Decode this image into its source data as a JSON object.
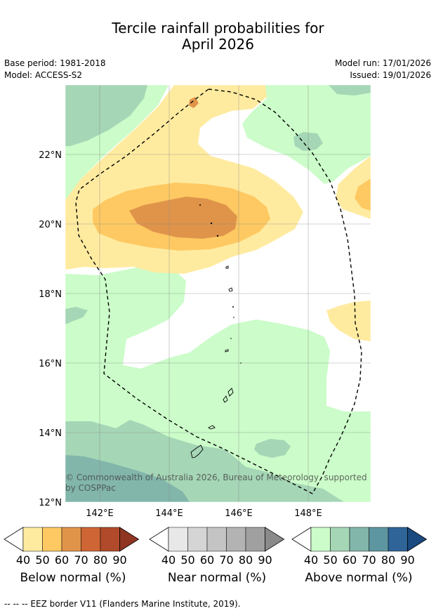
{
  "title_line1": "Tercile rainfall probabilities for",
  "title_line2": "April 2026",
  "meta": {
    "base_period": "Base period: 1981-2018",
    "model": "Model: ACCESS-S2",
    "model_run": "Model run: 17/01/2026",
    "issued": "Issued: 19/01/2026"
  },
  "map": {
    "lat_labels": [
      "22°N",
      "20°N",
      "18°N",
      "16°N",
      "14°N",
      "12°N"
    ],
    "lon_labels": [
      "142°E",
      "144°E",
      "146°E",
      "148°E"
    ],
    "copyright_line1": "© Commonwealth of Australia 2026, Bureau of Meteorology, supported",
    "copyright_line2": "by COSPPac"
  },
  "colorbars": [
    {
      "name": "below",
      "label": "Below normal (%)",
      "ticks": [
        "40",
        "50",
        "60",
        "70",
        "80",
        "90"
      ],
      "colors": [
        "#ffeba0",
        "#fec962",
        "#e0944a",
        "#cf6535",
        "#b04a2a",
        "#8f3522"
      ]
    },
    {
      "name": "near",
      "label": "Near normal (%)",
      "ticks": [
        "40",
        "50",
        "60",
        "70",
        "80",
        "90"
      ],
      "colors": [
        "#e8e8e8",
        "#d5d5d5",
        "#c4c4c4",
        "#b3b3b3",
        "#a0a0a0",
        "#8a8a8a"
      ]
    },
    {
      "name": "above",
      "label": "Above normal (%)",
      "ticks": [
        "40",
        "50",
        "60",
        "70",
        "80",
        "90"
      ],
      "colors": [
        "#cbfcc9",
        "#a5d6b6",
        "#82b6ab",
        "#5d96a0",
        "#2e6497",
        "#1a4a80"
      ]
    }
  ],
  "footnote": "--  --  -- EEZ border V11 (Flanders Marine Institute, 2019)."
}
